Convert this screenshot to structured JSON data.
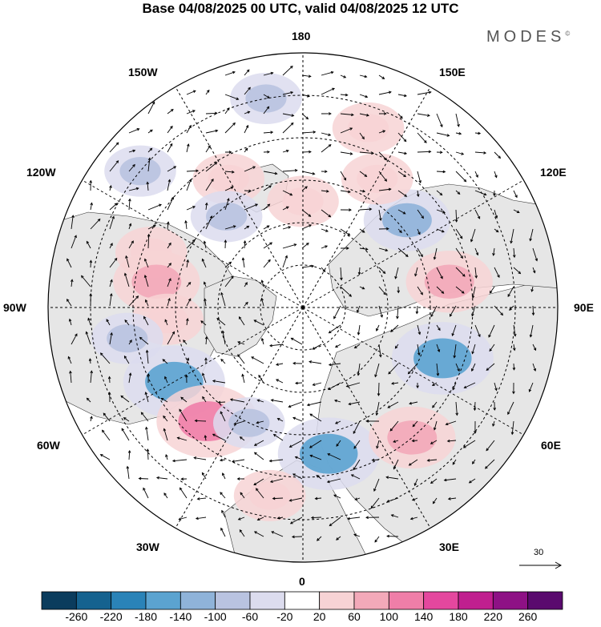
{
  "title": "Base 04/08/2025 00 UTC, valid 04/08/2025 12 UTC",
  "brand": "MODES",
  "brand_mark": "©",
  "projection_labels": {
    "top": "180",
    "bottom": "0",
    "left": "90W",
    "right": "90E",
    "upper_left_1": "150W",
    "upper_left_2": "120W",
    "upper_right_1": "150E",
    "upper_right_2": "120E",
    "lower_left_1": "60W",
    "lower_left_2": "30W",
    "lower_right_1": "60E",
    "lower_right_2": "30E"
  },
  "reference_vector": {
    "value": "30"
  },
  "colorbar": {
    "ticks": [
      "-260",
      "-220",
      "-180",
      "-140",
      "-100",
      "-60",
      "-20",
      "20",
      "60",
      "100",
      "140",
      "180",
      "220",
      "260"
    ],
    "colors": [
      "#0b3c5d",
      "#15628f",
      "#2a83b8",
      "#5ba3d0",
      "#8fb3d9",
      "#b9c3e0",
      "#dcdcee",
      "#ffffff",
      "#f7d3d5",
      "#f3a9b9",
      "#ef7ea8",
      "#e4479e",
      "#c01f8f",
      "#8e1185",
      "#5a0a6e"
    ]
  },
  "anomaly_blobs": [
    {
      "lon": -110,
      "lat": 52,
      "value": 60
    },
    {
      "lon": -100,
      "lat": 55,
      "value": 100
    },
    {
      "lon": -85,
      "lat": 58,
      "value": 60
    },
    {
      "lon": -80,
      "lat": 48,
      "value": -60
    },
    {
      "lon": -60,
      "lat": 55,
      "value": -140
    },
    {
      "lon": -40,
      "lat": 55,
      "value": 140
    },
    {
      "lon": -25,
      "lat": 60,
      "value": -60
    },
    {
      "lon": 10,
      "lat": 55,
      "value": -140
    },
    {
      "lon": 40,
      "lat": 50,
      "value": 100
    },
    {
      "lon": 70,
      "lat": 55,
      "value": -140
    },
    {
      "lon": 100,
      "lat": 55,
      "value": 100
    },
    {
      "lon": 130,
      "lat": 58,
      "value": -100
    },
    {
      "lon": 150,
      "lat": 55,
      "value": 60
    },
    {
      "lon": 160,
      "lat": 45,
      "value": 60
    },
    {
      "lon": -170,
      "lat": 40,
      "value": -60
    },
    {
      "lon": -150,
      "lat": 55,
      "value": 60
    },
    {
      "lon": -140,
      "lat": 62,
      "value": -60
    },
    {
      "lon": -130,
      "lat": 40,
      "value": -60
    },
    {
      "lon": 180,
      "lat": 65,
      "value": 60
    },
    {
      "lon": -10,
      "lat": 45,
      "value": 60
    }
  ]
}
